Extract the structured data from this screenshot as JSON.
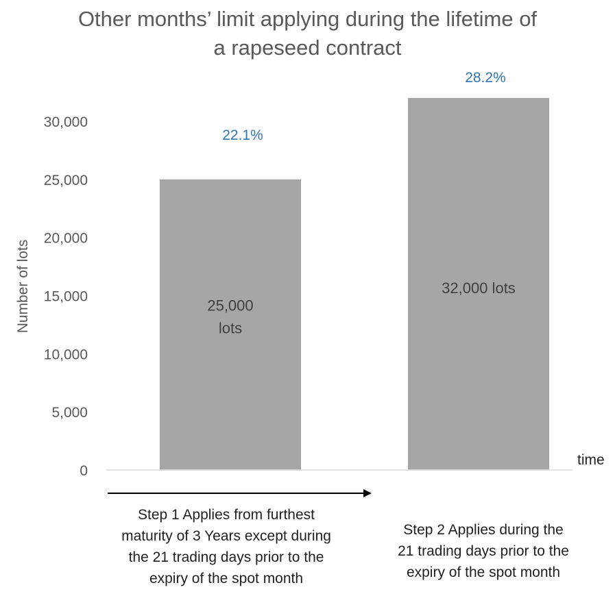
{
  "title_lines": [
    "Other months’ limit applying during the lifetime of",
    "a rapeseed contract"
  ],
  "chart_data": {
    "type": "bar",
    "title": "Other months’ limit applying during the lifetime of a rapeseed contract",
    "ylabel": "Number of lots",
    "xlabel": "time",
    "ylim": [
      0,
      30000
    ],
    "ytick_values": [
      0,
      5000,
      10000,
      15000,
      20000,
      25000,
      30000
    ],
    "ytick_labels": [
      "0",
      "5,000",
      "10,000",
      "15,000",
      "20,000",
      "25,000",
      "30,000"
    ],
    "grid": false,
    "bar_color": "#a6a6a6",
    "pct_color": "#2e75b6",
    "categories": [
      "Step 1 Applies from furthest\nmaturity of 3 Years except during\nthe 21 trading days prior to the\nexpiry of the  spot month",
      "Step 2 Applies during  the\n21 trading days prior to the\nexpiry of the spot month"
    ],
    "values": [
      25000,
      32000
    ],
    "bar_labels": [
      "25,000\nlots",
      "32,000 lots"
    ],
    "pct_labels": [
      "22.1%",
      "28.2%"
    ],
    "annotations": [
      "time axis arrow pointing right"
    ]
  }
}
